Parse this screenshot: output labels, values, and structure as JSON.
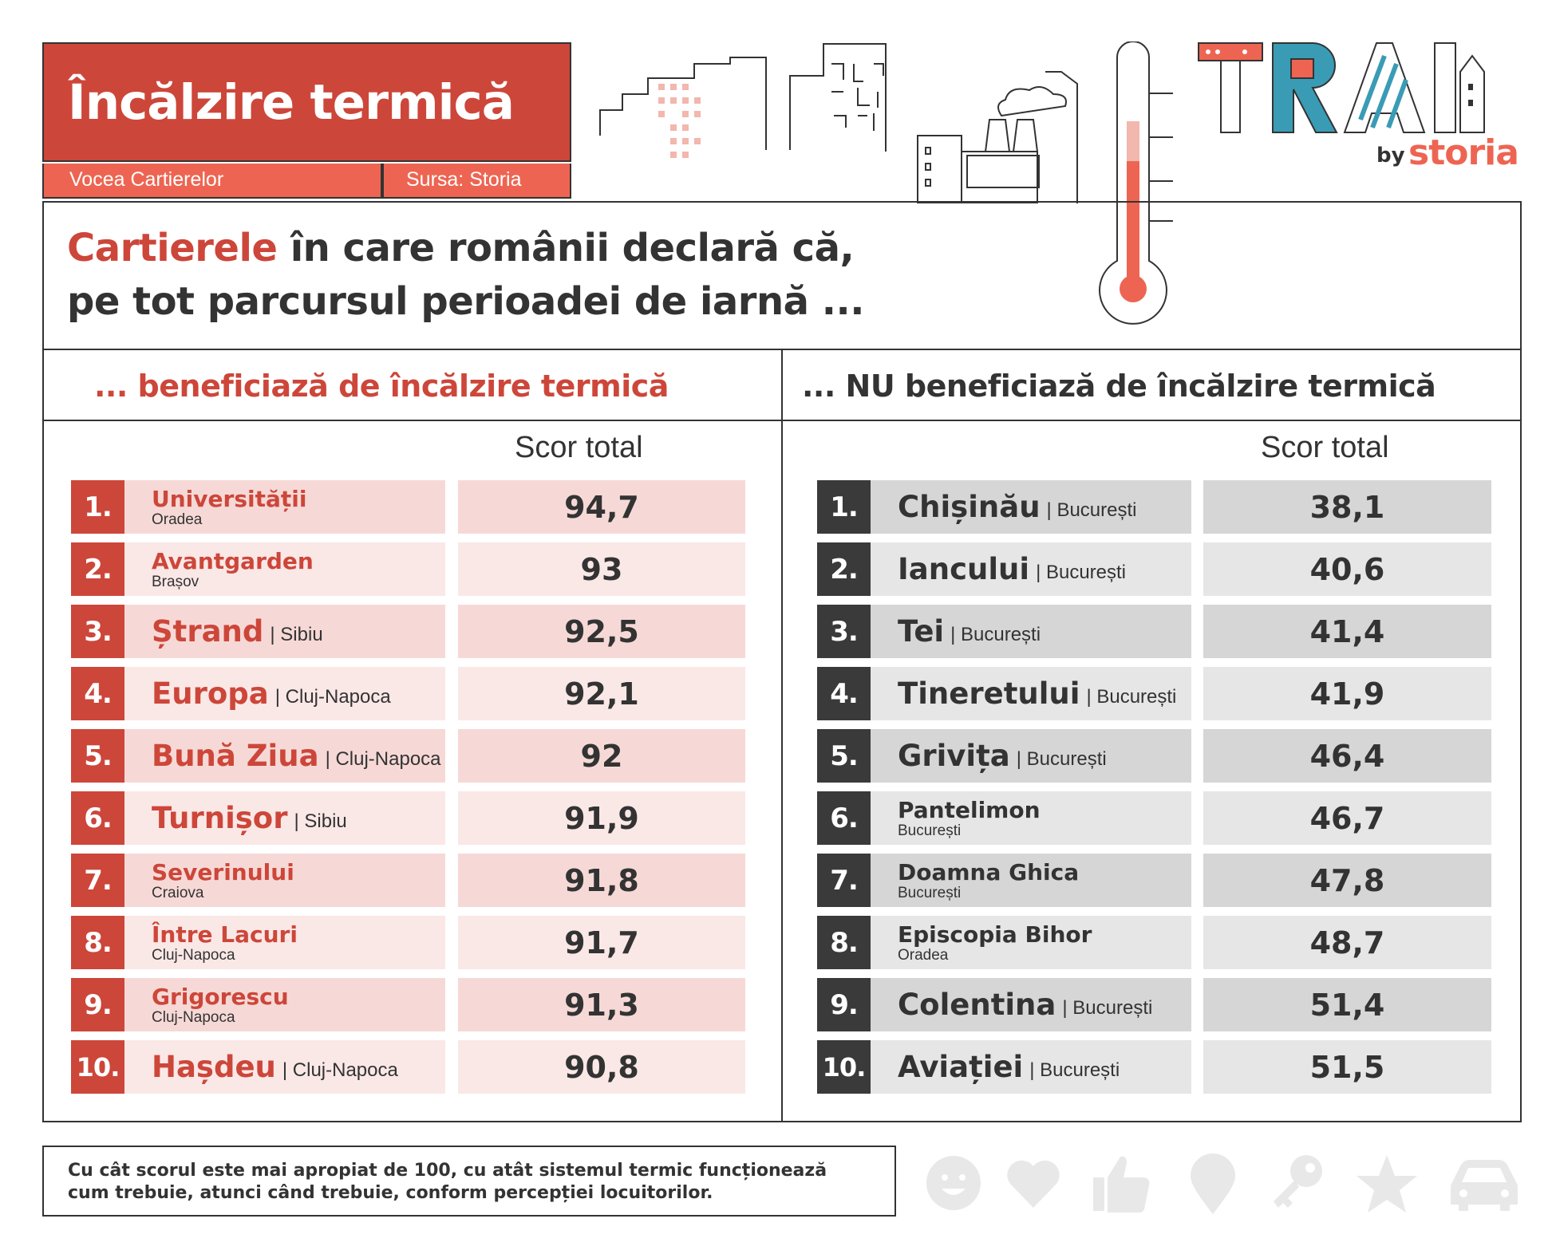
{
  "header": {
    "title": "Încălzire termică",
    "series_label": "Vocea Cartierelor",
    "source_label": "Sursa: Storia"
  },
  "heading": {
    "line1_highlight": "Cartierele",
    "line1_rest": " în care românii declară că,",
    "line2": "pe tot parcursul perioadei de iarnă ..."
  },
  "logo": {
    "letters": "TRAI",
    "by": "by",
    "brand": "storia"
  },
  "left_table": {
    "heading": "... beneficiază de încălzire termică",
    "score_label": "Scor total",
    "rows": [
      {
        "rank": "1.",
        "name": "Universității",
        "city": "Oradea",
        "score": "94,7",
        "stacked": true
      },
      {
        "rank": "2.",
        "name": "Avantgarden",
        "city": "Brașov",
        "score": "93",
        "stacked": true
      },
      {
        "rank": "3.",
        "name": "Ștrand",
        "city": "| Sibiu",
        "score": "92,5",
        "stacked": false
      },
      {
        "rank": "4.",
        "name": "Europa",
        "city": "| Cluj-Napoca",
        "score": "92,1",
        "stacked": false
      },
      {
        "rank": "5.",
        "name": "Bună Ziua",
        "city": "| Cluj-Napoca",
        "score": "92",
        "stacked": false
      },
      {
        "rank": "6.",
        "name": "Turnișor",
        "city": "| Sibiu",
        "score": "91,9",
        "stacked": false
      },
      {
        "rank": "7.",
        "name": "Severinului",
        "city": "Craiova",
        "score": "91,8",
        "stacked": true
      },
      {
        "rank": "8.",
        "name": "Între Lacuri",
        "city": "Cluj-Napoca",
        "score": "91,7",
        "stacked": true
      },
      {
        "rank": "9.",
        "name": "Grigorescu",
        "city": "Cluj-Napoca",
        "score": "91,3",
        "stacked": true
      },
      {
        "rank": "10.",
        "name": "Hașdeu",
        "city": "| Cluj-Napoca",
        "score": "90,8",
        "stacked": false
      }
    ]
  },
  "right_table": {
    "heading": "... NU beneficiază de încălzire termică",
    "score_label": "Scor total",
    "rows": [
      {
        "rank": "1.",
        "name": "Chișinău",
        "city": "| București",
        "score": "38,1",
        "stacked": false
      },
      {
        "rank": "2.",
        "name": "Iancului",
        "city": "| București",
        "score": "40,6",
        "stacked": false
      },
      {
        "rank": "3.",
        "name": "Tei",
        "city": "| București",
        "score": "41,4",
        "stacked": false
      },
      {
        "rank": "4.",
        "name": "Tineretului",
        "city": "| București",
        "score": "41,9",
        "stacked": false
      },
      {
        "rank": "5.",
        "name": "Grivița",
        "city": "| București",
        "score": "46,4",
        "stacked": false
      },
      {
        "rank": "6.",
        "name": "Pantelimon",
        "city": "București",
        "score": "46,7",
        "stacked": true
      },
      {
        "rank": "7.",
        "name": "Doamna Ghica",
        "city": "București",
        "score": "47,8",
        "stacked": true
      },
      {
        "rank": "8.",
        "name": "Episcopia Bihor",
        "city": "Oradea",
        "score": "48,7",
        "stacked": true
      },
      {
        "rank": "9.",
        "name": "Colentina",
        "city": "| București",
        "score": "51,4",
        "stacked": false
      },
      {
        "rank": "10.",
        "name": "Aviației",
        "city": "| București",
        "score": "51,5",
        "stacked": false
      }
    ]
  },
  "footer": {
    "note_line1": "Cu cât scorul este mai apropiat de 100, cu atât sistemul termic funcționează",
    "note_line2": "cum trebuie, atunci când trebuie, conform percepției locuitorilor.",
    "icons": [
      "smiley-icon",
      "heart-icon",
      "thumbs-up-icon",
      "map-pin-icon",
      "key-icon",
      "star-icon",
      "car-icon"
    ]
  },
  "colors": {
    "red": "#cd463a",
    "coral": "#ed6552",
    "dark": "#3a3a3a",
    "pink_a": "#f6d9d6",
    "pink_b": "#fae8e6",
    "grey_a": "#d6d6d6",
    "grey_b": "#e6e6e6",
    "icon_grey": "#e8e8e8"
  }
}
